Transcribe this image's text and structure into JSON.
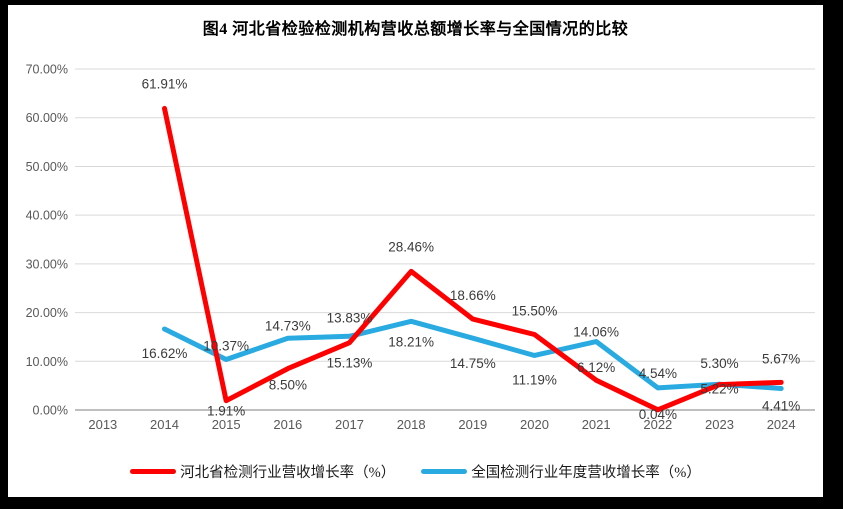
{
  "title": "图4  河北省检验检测机构营收总额增长率与全国情况的比较",
  "chart_data": {
    "type": "line",
    "categories": [
      "2013",
      "2014",
      "2015",
      "2016",
      "2017",
      "2018",
      "2019",
      "2020",
      "2021",
      "2022",
      "2023",
      "2024"
    ],
    "series": [
      {
        "name": "河北省检测行业营收增长率（%）",
        "color": "#FF0000",
        "values": [
          null,
          61.91,
          1.91,
          8.5,
          13.83,
          28.46,
          18.66,
          15.5,
          6.12,
          0.04,
          5.22,
          5.67
        ],
        "labels": [
          "",
          "61.91%",
          "1.91%",
          "8.50%",
          "13.83%",
          "28.46%",
          "18.66%",
          "15.50%",
          "6.12%",
          "0.04%",
          "5.22%",
          "5.67%"
        ]
      },
      {
        "name": "全国检测行业年度营收增长率（%）",
        "color": "#29ABE2",
        "values": [
          null,
          16.62,
          10.37,
          14.73,
          15.13,
          18.21,
          14.75,
          11.19,
          14.06,
          4.54,
          5.3,
          4.41
        ],
        "labels": [
          "",
          "16.62%",
          "10.37%",
          "14.73%",
          "15.13%",
          "18.21%",
          "14.75%",
          "11.19%",
          "14.06%",
          "4.54%",
          "5.30%",
          "4.41%"
        ]
      }
    ],
    "y_ticks": [
      "0.00%",
      "10.00%",
      "20.00%",
      "30.00%",
      "40.00%",
      "50.00%",
      "60.00%",
      "70.00%"
    ],
    "ylim": [
      0,
      70
    ],
    "y_step": 10,
    "grid": true,
    "legend_position": "bottom",
    "colors": {
      "gridline": "#d9d9d9",
      "axis_line": "#bfbfbf",
      "tick_text": "#595959",
      "data_label_text": "#3b3b3b",
      "frame": "#000000",
      "plot_background": "#ffffff"
    }
  }
}
